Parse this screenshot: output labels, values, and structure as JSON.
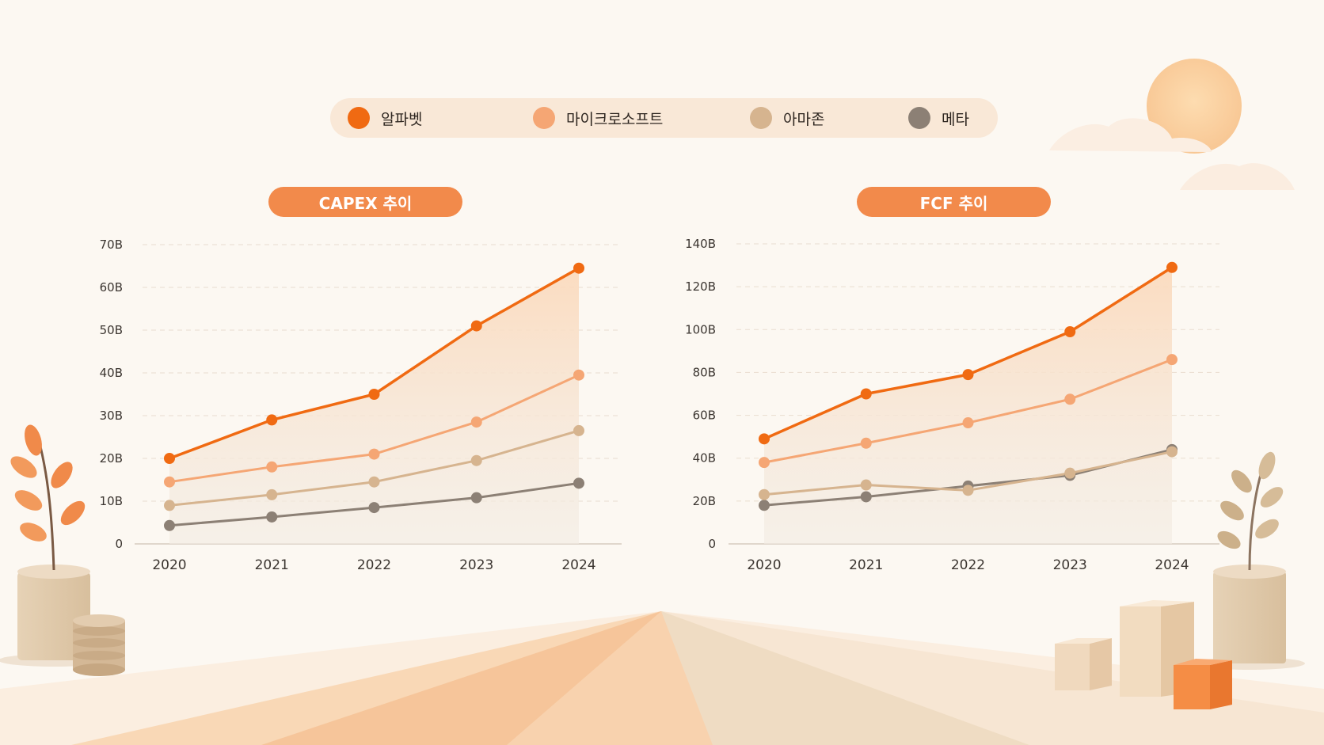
{
  "legend": [
    {
      "label": "알파벳",
      "color": "#f06a12"
    },
    {
      "label": "마이크로소프트",
      "color": "#f5a674"
    },
    {
      "label": "아마존",
      "color": "#d6b48f"
    },
    {
      "label": "메타",
      "color": "#8c8075"
    }
  ],
  "chart_data": [
    {
      "type": "line",
      "title": "CAPEX 추이",
      "x": [
        "2020",
        "2021",
        "2022",
        "2023",
        "2024"
      ],
      "ylim": [
        0,
        70
      ],
      "yticks": [
        "0",
        "10B",
        "20B",
        "30B",
        "40B",
        "50B",
        "60B",
        "70B"
      ],
      "grid": true,
      "series": [
        {
          "name": "알파벳",
          "color": "#f06a12",
          "values": [
            20,
            29,
            35,
            51,
            64.5
          ]
        },
        {
          "name": "마이크로소프트",
          "color": "#f5a674",
          "values": [
            14.5,
            18,
            21,
            28.5,
            39.5
          ]
        },
        {
          "name": "아마존",
          "color": "#d6b48f",
          "values": [
            9,
            11.5,
            14.5,
            19.5,
            26.5
          ]
        },
        {
          "name": "메타",
          "color": "#8c8075",
          "values": [
            4.3,
            6.3,
            8.5,
            10.8,
            14.2
          ]
        }
      ]
    },
    {
      "type": "line",
      "title": "FCF 추이",
      "x": [
        "2020",
        "2021",
        "2022",
        "2023",
        "2024"
      ],
      "ylim": [
        0,
        140
      ],
      "yticks": [
        "0",
        "20B",
        "40B",
        "60B",
        "80B",
        "100B",
        "120B",
        "140B"
      ],
      "grid": true,
      "series": [
        {
          "name": "알파벳",
          "color": "#f06a12",
          "values": [
            49,
            70,
            79,
            99,
            129
          ]
        },
        {
          "name": "마이크로소프트",
          "color": "#f5a674",
          "values": [
            38,
            47,
            56.5,
            67.5,
            86
          ]
        },
        {
          "name": "아마존",
          "color": "#d6b48f",
          "values": [
            23,
            27.5,
            25,
            33,
            43
          ]
        },
        {
          "name": "메타",
          "color": "#8c8075",
          "values": [
            18,
            22,
            27,
            32,
            44
          ]
        }
      ]
    }
  ]
}
